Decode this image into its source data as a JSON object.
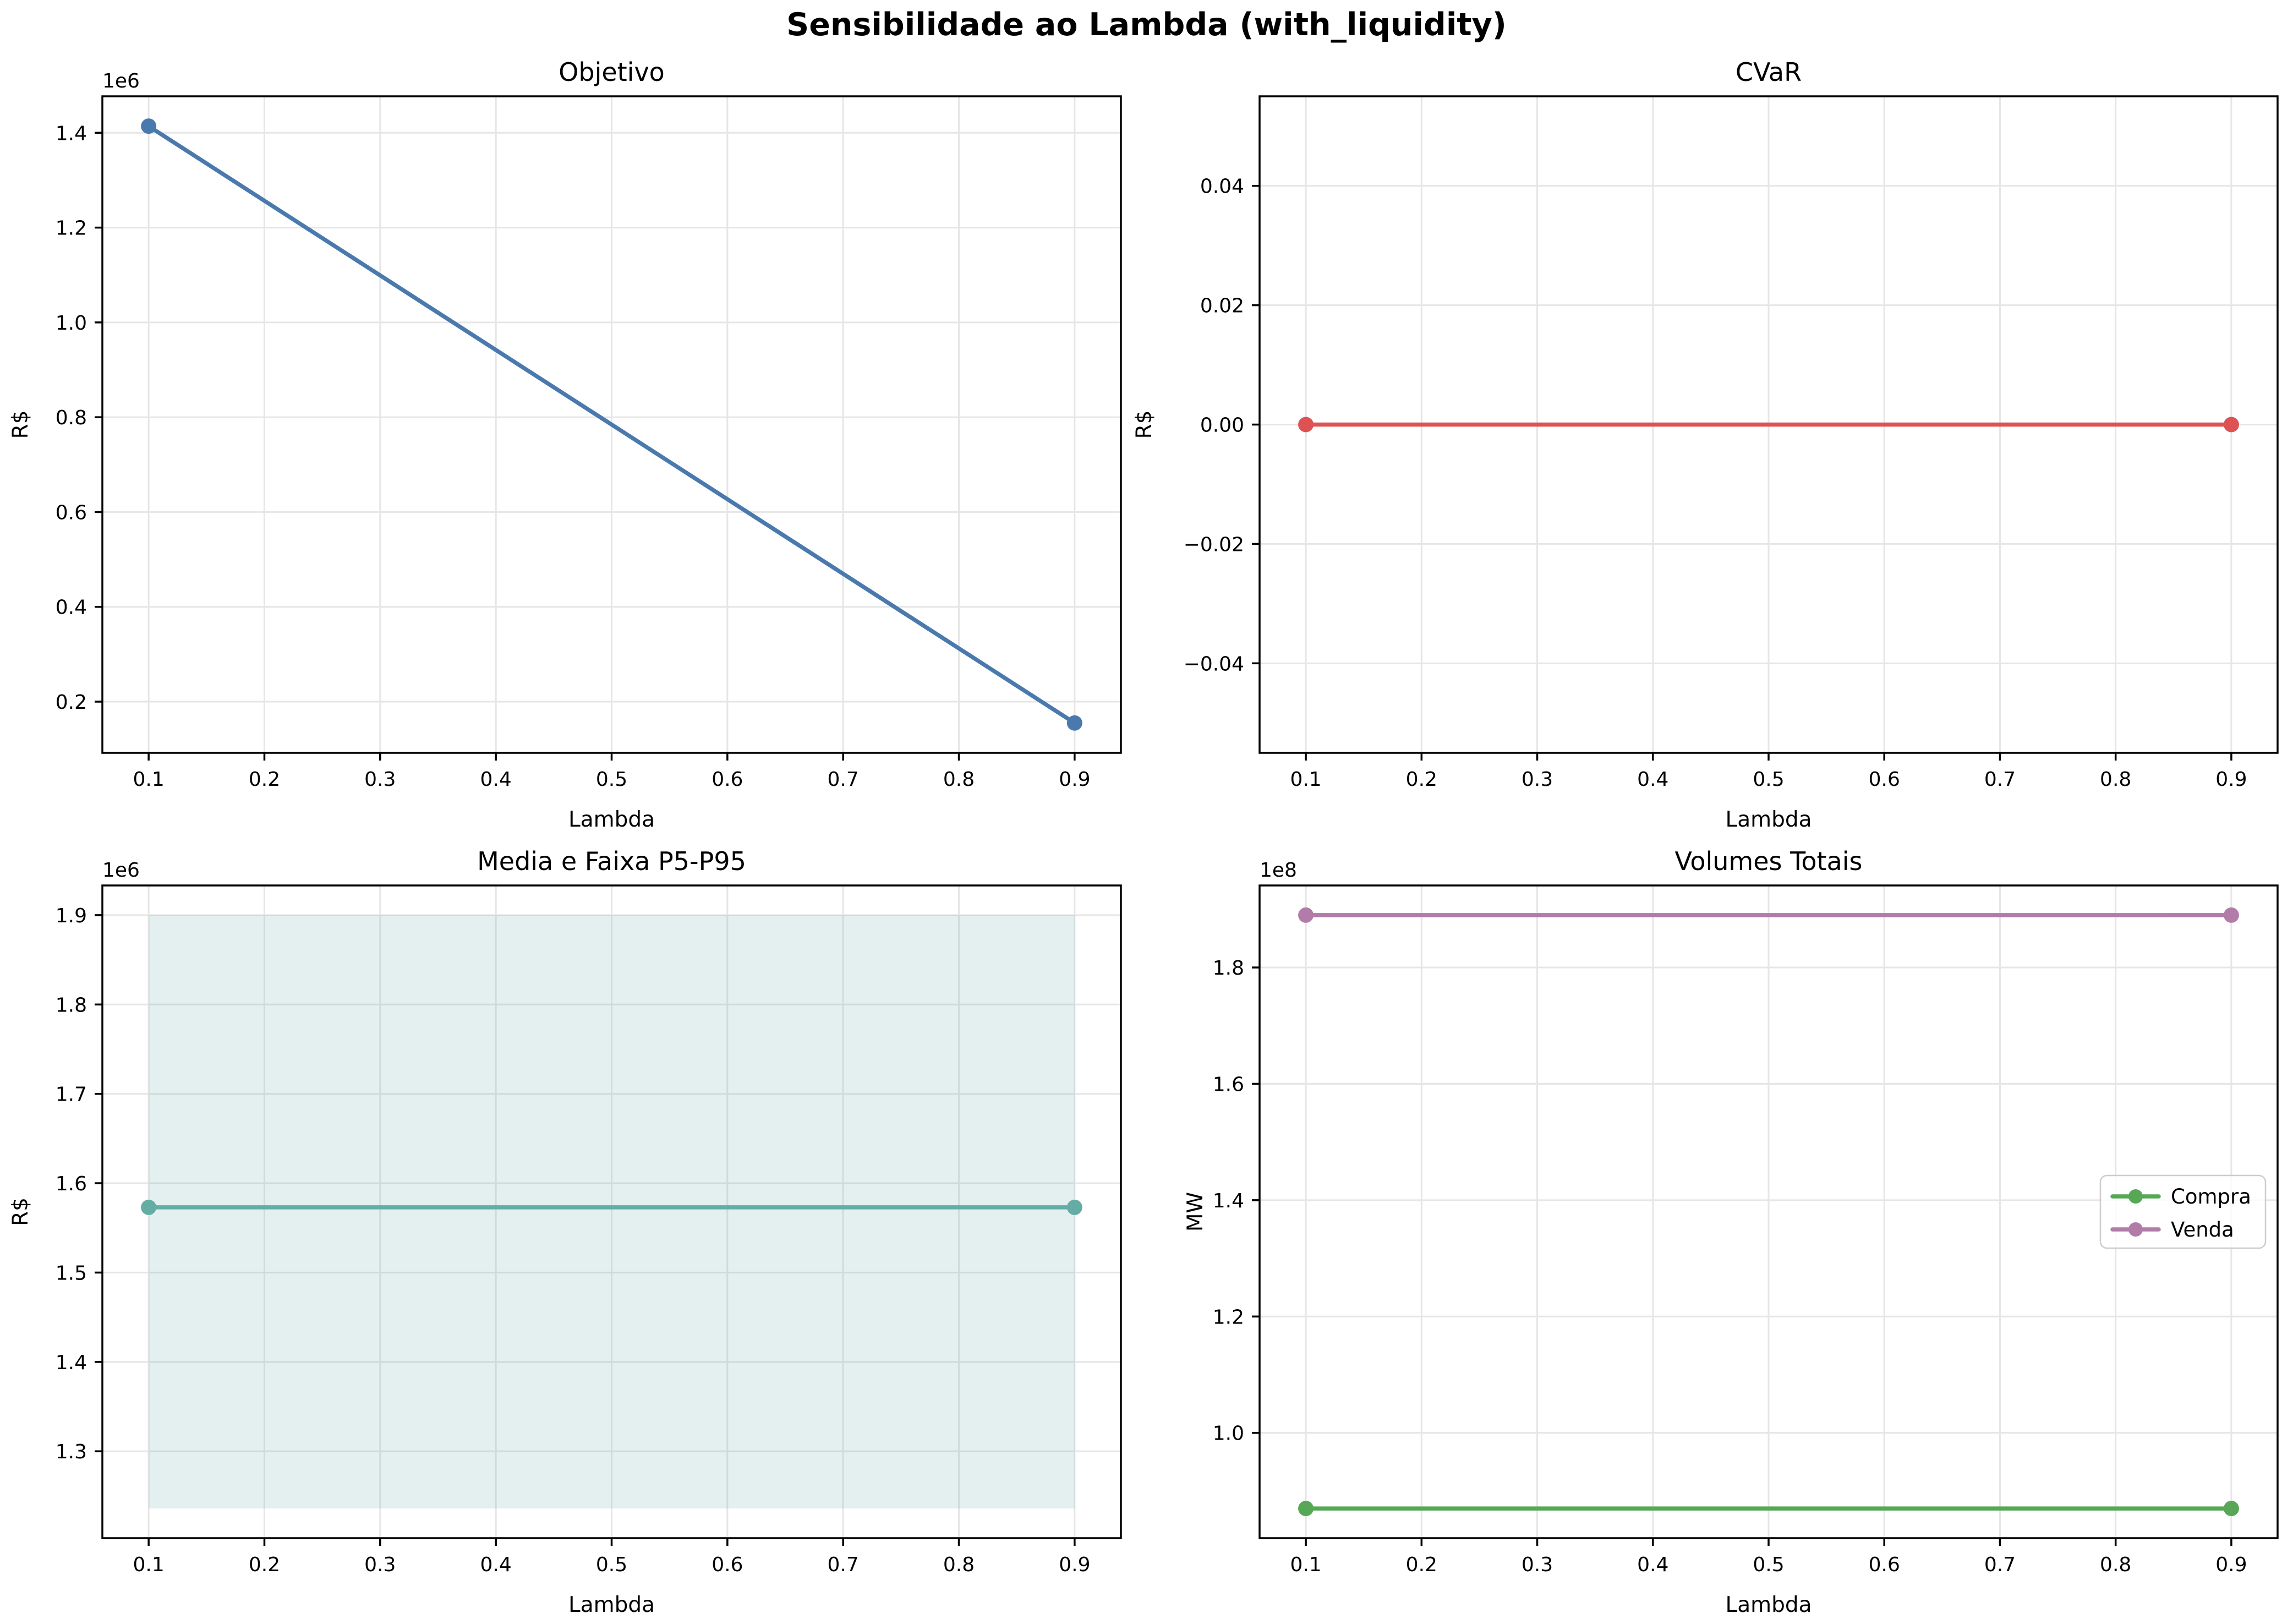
{
  "suptitle": "Sensibilidade ao Lambda (with_liquidity)",
  "colors": {
    "background": "#ffffff",
    "grid": "#e6e6e6",
    "axis": "#000000",
    "text": "#000000",
    "legend_border": "#cccccc",
    "objetivo_line": "#4a79ae",
    "cvar_line": "#de5253",
    "media_line": "#63ada5",
    "band_fill": "#63ada5",
    "compra_line": "#57a757",
    "venda_line": "#b17ca8"
  },
  "chart_data": [
    {
      "id": "objetivo",
      "type": "line",
      "title": "Objetivo",
      "xlabel": "Lambda",
      "ylabel": "R$",
      "offset_text": "1e6",
      "grid": true,
      "xlim": [
        0.06,
        0.94
      ],
      "ylim": [
        92050,
        1476950
      ],
      "xticks": [
        0.1,
        0.2,
        0.3,
        0.4,
        0.5,
        0.6,
        0.7,
        0.8,
        0.9
      ],
      "xtick_labels": [
        "0.1",
        "0.2",
        "0.3",
        "0.4",
        "0.5",
        "0.6",
        "0.7",
        "0.8",
        "0.9"
      ],
      "yticks": [
        200000,
        400000,
        600000,
        800000,
        1000000,
        1200000,
        1400000
      ],
      "ytick_labels": [
        "0.2",
        "0.4",
        "0.6",
        "0.8",
        "1.0",
        "1.2",
        "1.4"
      ],
      "series": [
        {
          "name": "Objetivo",
          "color": "#4a79ae",
          "x": [
            0.1,
            0.9
          ],
          "y": [
            1414000,
            155000
          ],
          "marker": true
        }
      ]
    },
    {
      "id": "cvar",
      "type": "line",
      "title": "CVaR",
      "xlabel": "Lambda",
      "ylabel": "R$",
      "offset_text": null,
      "grid": true,
      "xlim": [
        0.06,
        0.94
      ],
      "ylim": [
        -0.055,
        0.055
      ],
      "xticks": [
        0.1,
        0.2,
        0.3,
        0.4,
        0.5,
        0.6,
        0.7,
        0.8,
        0.9
      ],
      "xtick_labels": [
        "0.1",
        "0.2",
        "0.3",
        "0.4",
        "0.5",
        "0.6",
        "0.7",
        "0.8",
        "0.9"
      ],
      "yticks": [
        0.04,
        0.02,
        0.0,
        -0.02,
        -0.04
      ],
      "ytick_labels": [
        "0.04",
        "0.02",
        "0.00",
        "−0.02",
        "−0.04"
      ],
      "series": [
        {
          "name": "CVaR",
          "color": "#de5253",
          "x": [
            0.1,
            0.9
          ],
          "y": [
            0.0,
            0.0
          ],
          "marker": true
        }
      ]
    },
    {
      "id": "media-faixa",
      "type": "line",
      "title": "Media e Faixa P5-P95",
      "xlabel": "Lambda",
      "ylabel": "R$",
      "offset_text": "1e6",
      "grid": true,
      "xlim": [
        0.06,
        0.94
      ],
      "ylim": [
        1202800,
        1933200
      ],
      "xticks": [
        0.1,
        0.2,
        0.3,
        0.4,
        0.5,
        0.6,
        0.7,
        0.8,
        0.9
      ],
      "xtick_labels": [
        "0.1",
        "0.2",
        "0.3",
        "0.4",
        "0.5",
        "0.6",
        "0.7",
        "0.8",
        "0.9"
      ],
      "yticks": [
        1300000,
        1400000,
        1500000,
        1600000,
        1700000,
        1800000,
        1900000
      ],
      "ytick_labels": [
        "1.3",
        "1.4",
        "1.5",
        "1.6",
        "1.7",
        "1.8",
        "1.9"
      ],
      "band": {
        "x": [
          0.1,
          0.9
        ],
        "y_low": 1236000,
        "y_high": 1900000,
        "color": "#63ada5",
        "opacity": 0.18
      },
      "series": [
        {
          "name": "Media",
          "color": "#63ada5",
          "x": [
            0.1,
            0.9
          ],
          "y": [
            1573000,
            1573000
          ],
          "marker": true
        }
      ]
    },
    {
      "id": "volumes-totais",
      "type": "line",
      "title": "Volumes Totais",
      "xlabel": "Lambda",
      "ylabel": "MW",
      "offset_text": "1e8",
      "grid": true,
      "xlim": [
        0.06,
        0.94
      ],
      "ylim": [
        81900000,
        194100000
      ],
      "xticks": [
        0.1,
        0.2,
        0.3,
        0.4,
        0.5,
        0.6,
        0.7,
        0.8,
        0.9
      ],
      "xtick_labels": [
        "0.1",
        "0.2",
        "0.3",
        "0.4",
        "0.5",
        "0.6",
        "0.7",
        "0.8",
        "0.9"
      ],
      "yticks": [
        100000000,
        120000000,
        140000000,
        160000000,
        180000000
      ],
      "ytick_labels": [
        "1.0",
        "1.2",
        "1.4",
        "1.6",
        "1.8"
      ],
      "series": [
        {
          "name": "Compra",
          "color": "#57a757",
          "x": [
            0.1,
            0.9
          ],
          "y": [
            87000000,
            87000000
          ],
          "marker": true
        },
        {
          "name": "Venda",
          "color": "#b17ca8",
          "x": [
            0.1,
            0.9
          ],
          "y": [
            189000000,
            189000000
          ],
          "marker": true
        }
      ],
      "legend": {
        "entries": [
          "Compra",
          "Venda"
        ],
        "position": "center right"
      }
    }
  ]
}
